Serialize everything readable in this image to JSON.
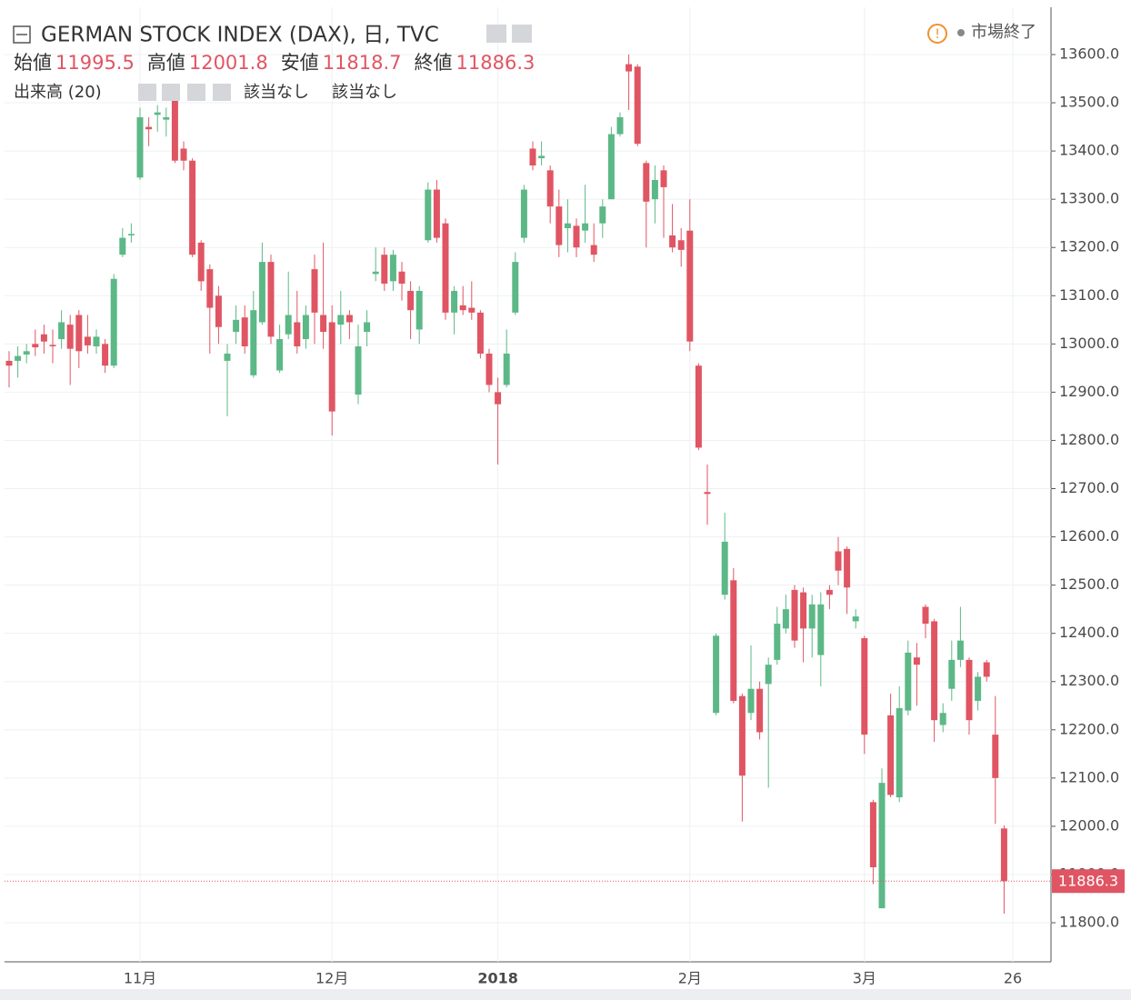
{
  "chart_data": {
    "type": "candlestick",
    "title": "GERMAN STOCK INDEX (DAX), 日, TVC",
    "status": "市場終了",
    "legend": [
      {
        "label": "始値",
        "value": 11995.5
      },
      {
        "label": "高値",
        "value": 12001.8
      },
      {
        "label": "安値",
        "value": 11818.7
      },
      {
        "label": "終値",
        "value": 11886.3
      }
    ],
    "volume_label": "出来高 (20)",
    "volume_values": [
      "該当なし",
      "該当なし"
    ],
    "last_price": 11886.3,
    "up_color": "#5cb887",
    "down_color": "#e05563",
    "grid": true,
    "categories": [
      null,
      null,
      null,
      null,
      null,
      null,
      null,
      null,
      null,
      null,
      null,
      null,
      null,
      null,
      null,
      "11月",
      null,
      null,
      null,
      null,
      null,
      null,
      null,
      null,
      null,
      null,
      null,
      null,
      null,
      null,
      null,
      null,
      null,
      null,
      null,
      null,
      null,
      "12月",
      null,
      null,
      null,
      null,
      null,
      null,
      null,
      null,
      null,
      null,
      null,
      null,
      null,
      null,
      null,
      null,
      null,
      null,
      "2018",
      null,
      null,
      null,
      null,
      null,
      null,
      null,
      null,
      null,
      null,
      null,
      null,
      null,
      null,
      null,
      null,
      null,
      null,
      null,
      null,
      null,
      "2月",
      null,
      null,
      null,
      null,
      null,
      null,
      null,
      null,
      null,
      null,
      null,
      null,
      null,
      null,
      null,
      null,
      null,
      null,
      null,
      "3月",
      null,
      null,
      null,
      null,
      null,
      null,
      null,
      null,
      null,
      null,
      null,
      null,
      null,
      null,
      null,
      null,
      "26"
    ],
    "open": [
      12965,
      12965,
      12978,
      13000,
      13020,
      12998,
      13010,
      13040,
      13060,
      13015,
      12995,
      13000,
      12955,
      13185,
      13225,
      13345,
      13450,
      13475,
      13465,
      13520,
      13405,
      13380,
      13210,
      13155,
      13100,
      12965,
      13025,
      13055,
      12935,
      13045,
      13170,
      12945,
      13020,
      13045,
      13010,
      13155,
      13060,
      13045,
      13040,
      13060,
      12895,
      13025,
      13145,
      13185,
      13130,
      13150,
      13110,
      13030,
      13215,
      13320,
      13250,
      13065,
      13080,
      13075,
      13065,
      12980,
      12900,
      12915,
      13065,
      13220,
      13405,
      13385,
      13360,
      13285,
      13240,
      13245,
      13235,
      13205,
      13250,
      13300,
      13435,
      13580,
      13575,
      13375,
      13300,
      13360,
      13225,
      13215,
      13235,
      12955,
      12693,
      12235,
      12480,
      12510,
      12270,
      12235,
      12285,
      12295,
      12345,
      12410,
      12490,
      12485,
      12410,
      12355,
      12490,
      12570,
      12575,
      12425,
      12390,
      12050,
      11830,
      12230,
      12060,
      12240,
      12350,
      12455,
      12425,
      12210,
      12285,
      12345,
      12345,
      12260,
      12340,
      12190,
      11995.5,
      null
    ],
    "high": [
      12985,
      12995,
      13000,
      13030,
      13040,
      13030,
      13070,
      13060,
      13070,
      13060,
      13030,
      13010,
      13145,
      13240,
      13250,
      13490,
      13470,
      13495,
      13490,
      13530,
      13420,
      13385,
      13215,
      13165,
      13120,
      13000,
      13080,
      13080,
      13110,
      13210,
      13185,
      13040,
      13150,
      13110,
      13080,
      13185,
      13210,
      13080,
      13110,
      13070,
      13040,
      13070,
      13200,
      13200,
      13195,
      13170,
      13130,
      13120,
      13335,
      13340,
      13260,
      13120,
      13120,
      13130,
      13070,
      12990,
      12930,
      13030,
      13190,
      13330,
      13420,
      13420,
      13370,
      13320,
      13300,
      13260,
      13330,
      13250,
      13300,
      13450,
      13480,
      13600,
      13580,
      13380,
      13370,
      13370,
      13290,
      13240,
      13300,
      12960,
      12750,
      12400,
      12650,
      12535,
      12275,
      12375,
      12300,
      12350,
      12455,
      12480,
      12500,
      12495,
      12480,
      12485,
      12500,
      12600,
      12580,
      12450,
      12395,
      12055,
      12120,
      12275,
      12290,
      12385,
      12380,
      12460,
      12430,
      12255,
      12385,
      12455,
      12350,
      12320,
      12345,
      12270,
      12001.8,
      null
    ],
    "low": [
      12910,
      12930,
      12960,
      12975,
      12980,
      12960,
      12990,
      12915,
      12950,
      12980,
      12980,
      12940,
      12950,
      13180,
      13210,
      13340,
      13410,
      13440,
      13430,
      13375,
      13360,
      13180,
      13110,
      12980,
      13000,
      12850,
      13000,
      12980,
      12930,
      13040,
      13000,
      12940,
      13010,
      12980,
      12990,
      13000,
      12990,
      12810,
      13000,
      13010,
      12875,
      12995,
      13130,
      13110,
      13110,
      13090,
      13010,
      13000,
      13210,
      13210,
      13050,
      13020,
      13060,
      13050,
      12970,
      12900,
      12750,
      12910,
      13060,
      13210,
      13360,
      13370,
      13250,
      13180,
      13190,
      13180,
      13210,
      13170,
      13220,
      13300,
      13430,
      13485,
      13410,
      13200,
      13250,
      13220,
      13190,
      13160,
      12985,
      12780,
      12625,
      12230,
      12470,
      12255,
      12010,
      12220,
      12180,
      12080,
      12335,
      12400,
      12370,
      12340,
      12350,
      12290,
      12450,
      12500,
      12440,
      12410,
      12150,
      11880,
      11830,
      12060,
      12050,
      12230,
      12250,
      12390,
      12175,
      12195,
      12260,
      12330,
      12190,
      12240,
      12300,
      12005,
      11818.7,
      null
    ],
    "close": [
      12955,
      12975,
      12985,
      12993,
      13005,
      12995,
      13045,
      12990,
      12985,
      12997,
      13015,
      12955,
      13135,
      13220,
      13228,
      13470,
      13445,
      13480,
      13470,
      13380,
      13380,
      13185,
      13130,
      13075,
      13035,
      12980,
      13050,
      12995,
      13070,
      13170,
      13015,
      13010,
      13060,
      12995,
      13060,
      13065,
      13025,
      12860,
      13060,
      13045,
      12995,
      13045,
      13150,
      13125,
      13185,
      13125,
      13070,
      13110,
      13320,
      13220,
      13065,
      13110,
      13070,
      13065,
      12980,
      12915,
      12875,
      12980,
      13170,
      13320,
      13370,
      13390,
      13285,
      13205,
      13250,
      13200,
      13250,
      13185,
      13285,
      13435,
      13470,
      13565,
      13415,
      13295,
      13340,
      13325,
      13200,
      13195,
      13005,
      12785,
      12689,
      12395,
      12590,
      12260,
      12105,
      12285,
      12195,
      12335,
      12420,
      12450,
      12385,
      12410,
      12460,
      12460,
      12480,
      12530,
      12495,
      12435,
      12190,
      11915,
      12090,
      12065,
      12245,
      12360,
      12335,
      12420,
      12220,
      12235,
      12345,
      12385,
      12220,
      12310,
      12310,
      12100,
      11886.3,
      null
    ],
    "ylim": [
      11719,
      13698
    ],
    "yticks": [
      {
        "value": 11800,
        "label": "11800.0"
      },
      {
        "value": 11900,
        "label": "11900.0"
      },
      {
        "value": 12000,
        "label": "12000.0"
      },
      {
        "value": 12100,
        "label": "12100.0"
      },
      {
        "value": 12200,
        "label": "12200.0"
      },
      {
        "value": 12300,
        "label": "12300.0"
      },
      {
        "value": 12400,
        "label": "12400.0"
      },
      {
        "value": 12500,
        "label": "12500.0"
      },
      {
        "value": 12600,
        "label": "12600.0"
      },
      {
        "value": 12700,
        "label": "12700.0"
      },
      {
        "value": 12800,
        "label": "12800.0"
      },
      {
        "value": 12900,
        "label": "12900.0"
      },
      {
        "value": 13000,
        "label": "13000.0"
      },
      {
        "value": 13100,
        "label": "13100.0"
      },
      {
        "value": 13200,
        "label": "13200.0"
      },
      {
        "value": 13300,
        "label": "13300.0"
      },
      {
        "value": 13400,
        "label": "13400.0"
      },
      {
        "value": 13500,
        "label": "13500.0"
      },
      {
        "value": 13600,
        "label": "13600.0"
      }
    ]
  }
}
